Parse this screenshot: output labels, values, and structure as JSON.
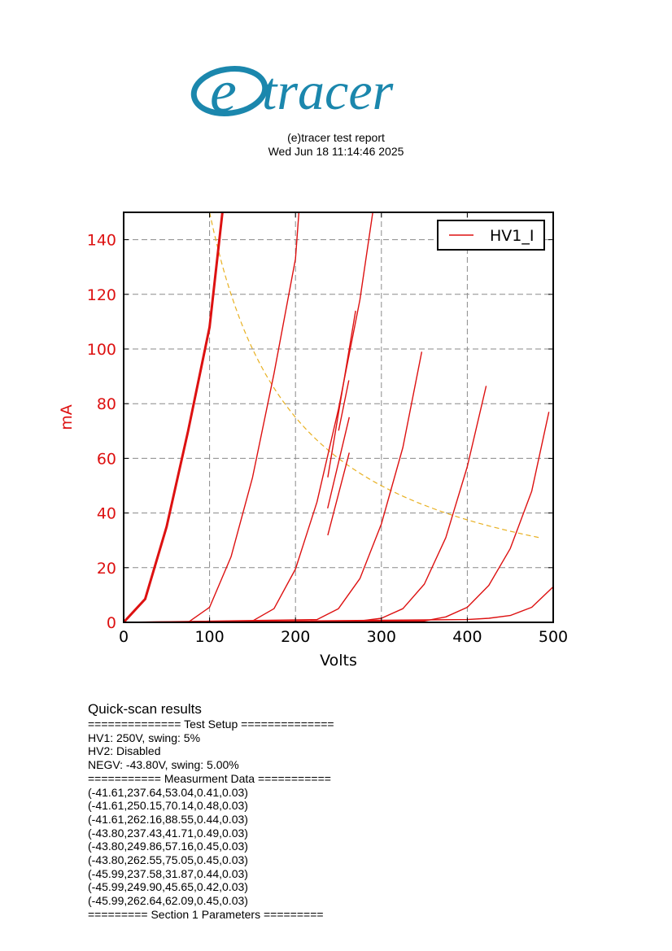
{
  "logo": {
    "text": "tracer",
    "letter": "e"
  },
  "header": {
    "title": "(e)tracer test report",
    "datetime": "Wed Jun 18 11:14:46 2025"
  },
  "chart_data": {
    "type": "line",
    "xlabel": "Volts",
    "ylabel": "mA",
    "xlim": [
      0,
      500
    ],
    "ylim": [
      0,
      150
    ],
    "xticks": [
      0,
      100,
      200,
      300,
      400,
      500
    ],
    "yticks": [
      0,
      20,
      40,
      60,
      80,
      100,
      120,
      140
    ],
    "grid": true,
    "legend": {
      "position": "top-right",
      "entries": [
        "HV1_I"
      ]
    },
    "line_color": "#dd1111",
    "dissipation_color": "#e8b020",
    "series": [
      {
        "name": "HV1_I",
        "bold": true,
        "points": [
          [
            0,
            0
          ],
          [
            25,
            8.5
          ],
          [
            50,
            35
          ],
          [
            75,
            70
          ],
          [
            100,
            108
          ],
          [
            115,
            150
          ]
        ]
      },
      {
        "points": [
          [
            0,
            0
          ],
          [
            75,
            0
          ],
          [
            100,
            5.5
          ],
          [
            125,
            24
          ],
          [
            150,
            53
          ],
          [
            175,
            91
          ],
          [
            200,
            133
          ],
          [
            204,
            150
          ]
        ]
      },
      {
        "points": [
          [
            0,
            0
          ],
          [
            150,
            0.5
          ],
          [
            175,
            5
          ],
          [
            200,
            19.5
          ],
          [
            225,
            44
          ],
          [
            250,
            78
          ],
          [
            275,
            118
          ],
          [
            290,
            150
          ]
        ]
      },
      {
        "points": [
          [
            0,
            0
          ],
          [
            225,
            1
          ],
          [
            250,
            5
          ],
          [
            275,
            16
          ],
          [
            300,
            36
          ],
          [
            325,
            64
          ],
          [
            347,
            99
          ]
        ]
      },
      {
        "points": [
          [
            0,
            0
          ],
          [
            275,
            0.5
          ],
          [
            300,
            1.5
          ],
          [
            325,
            5
          ],
          [
            350,
            14
          ],
          [
            375,
            31
          ],
          [
            400,
            57
          ],
          [
            422,
            86.5
          ]
        ]
      },
      {
        "points": [
          [
            0,
            0
          ],
          [
            350,
            0.5
          ],
          [
            375,
            2
          ],
          [
            400,
            5.5
          ],
          [
            425,
            13.5
          ],
          [
            450,
            27
          ],
          [
            475,
            48
          ],
          [
            495,
            77
          ]
        ]
      },
      {
        "points": [
          [
            0,
            0
          ],
          [
            400,
            1
          ],
          [
            425,
            1.5
          ],
          [
            450,
            2.5
          ],
          [
            475,
            5.5
          ],
          [
            500,
            13
          ]
        ]
      },
      {
        "points": [
          [
            237.64,
            53.04
          ],
          [
            270,
            114
          ]
        ]
      },
      {
        "points": [
          [
            237.43,
            41.71
          ],
          [
            262.55,
            75.05
          ]
        ]
      },
      {
        "points": [
          [
            237.58,
            31.87
          ],
          [
            262.64,
            62.09
          ]
        ]
      },
      {
        "points": [
          [
            250.15,
            70.14
          ],
          [
            262.16,
            88.55
          ]
        ]
      }
    ],
    "dissipation_curve": {
      "power_mW": 15000,
      "x_range": [
        100,
        485
      ]
    }
  },
  "report": {
    "title": "Quick-scan results",
    "lines": [
      "============== Test Setup ==============",
      "HV1: 250V, swing: 5%",
      "HV2: Disabled",
      "NEGV: -43.80V, swing: 5.00%",
      "=========== Measurment Data ===========",
      "(-41.61,237.64,53.04,0.41,0.03)",
      "(-41.61,250.15,70.14,0.48,0.03)",
      "(-41.61,262.16,88.55,0.44,0.03)",
      "(-43.80,237.43,41.71,0.49,0.03)",
      "(-43.80,249.86,57.16,0.45,0.03)",
      "(-43.80,262.55,75.05,0.45,0.03)",
      "(-45.99,237.58,31.87,0.44,0.03)",
      "(-45.99,249.90,45.65,0.42,0.03)",
      "(-45.99,262.64,62.09,0.45,0.03)",
      "========= Section 1 Parameters ========="
    ]
  }
}
